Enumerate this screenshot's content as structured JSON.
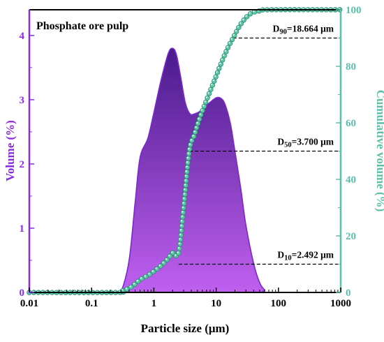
{
  "chart_data": {
    "type": "area",
    "title": "Phosphate ore pulp",
    "xlabel": "Particle size (μm)",
    "ylabel_left": "Volume (%)",
    "ylabel_right": "Cumulative volume (%)",
    "x_scale": "log",
    "xlim": [
      0.01,
      1000
    ],
    "ylim_left": [
      0,
      4.4
    ],
    "ylim_right": [
      0,
      100
    ],
    "x_ticks": [
      0.01,
      0.1,
      1,
      10,
      100,
      1000
    ],
    "x_tick_labels": [
      "0.01",
      "0.1",
      "1",
      "10",
      "100",
      "1000"
    ],
    "y_left_ticks": [
      0,
      1,
      2,
      3,
      4
    ],
    "y_left_tick_labels": [
      "0",
      "1",
      "2",
      "3",
      "4"
    ],
    "y_right_ticks": [
      0,
      20,
      40,
      60,
      80,
      100
    ],
    "y_right_tick_labels": [
      "0",
      "20",
      "40",
      "60",
      "80",
      "100"
    ],
    "colors": {
      "volume_fill_dark": "#4a1a8c",
      "volume_fill_light": "#c060f0",
      "volume_stroke": "#7a28d0",
      "left_axis": "#8a2be2",
      "cumulative_line": "#3aa890",
      "cumulative_marker": "#5cc8a8",
      "right_axis": "#5cc0a8"
    },
    "series": [
      {
        "axis": "left",
        "kind": "area",
        "x": [
          0.01,
          0.25,
          0.3,
          0.4,
          0.5,
          0.6,
          0.8,
          1.0,
          1.3,
          1.7,
          2.0,
          2.3,
          2.7,
          3.2,
          3.8,
          4.5,
          5.5,
          6.5,
          8.0,
          10.0,
          12.0,
          14.0,
          17.0,
          20.0,
          25.0,
          30.0,
          40.0,
          50.0,
          60.0,
          70.0,
          1000
        ],
        "values": [
          0,
          0,
          0.02,
          0.5,
          1.4,
          2.1,
          2.4,
          2.8,
          3.3,
          3.72,
          3.8,
          3.7,
          3.35,
          2.95,
          2.78,
          2.78,
          2.82,
          2.88,
          2.96,
          3.03,
          3.02,
          2.92,
          2.62,
          2.2,
          1.6,
          1.05,
          0.45,
          0.15,
          0.04,
          0.0,
          0
        ]
      },
      {
        "axis": "right",
        "kind": "line-with-markers",
        "x": [
          0.01,
          0.25,
          0.3,
          0.4,
          0.5,
          0.6,
          0.8,
          1.0,
          1.3,
          1.7,
          2.0,
          2.492,
          3.0,
          3.7,
          4.5,
          5.5,
          7.0,
          9.0,
          12.0,
          15.0,
          18.664,
          25.0,
          35.0,
          50.0,
          70.0,
          1000
        ],
        "values": [
          0,
          0,
          0.5,
          1.5,
          3.0,
          4.5,
          6.0,
          7.5,
          9.5,
          12.0,
          14.0,
          10,
          30.0,
          50,
          56.0,
          62.0,
          68.0,
          74.0,
          81.0,
          86.0,
          90,
          95.0,
          98.5,
          99.6,
          100,
          100
        ]
      }
    ],
    "annotations": [
      {
        "base": "D",
        "sub": "10",
        "rest": "=2.492 μm",
        "x": 2.492,
        "y": 10
      },
      {
        "base": "D",
        "sub": "50",
        "rest": "=3.700 μm",
        "x": 3.7,
        "y": 50
      },
      {
        "base": "D",
        "sub": "90",
        "rest": "=18.664 μm",
        "x": 18.664,
        "y": 90
      }
    ]
  }
}
